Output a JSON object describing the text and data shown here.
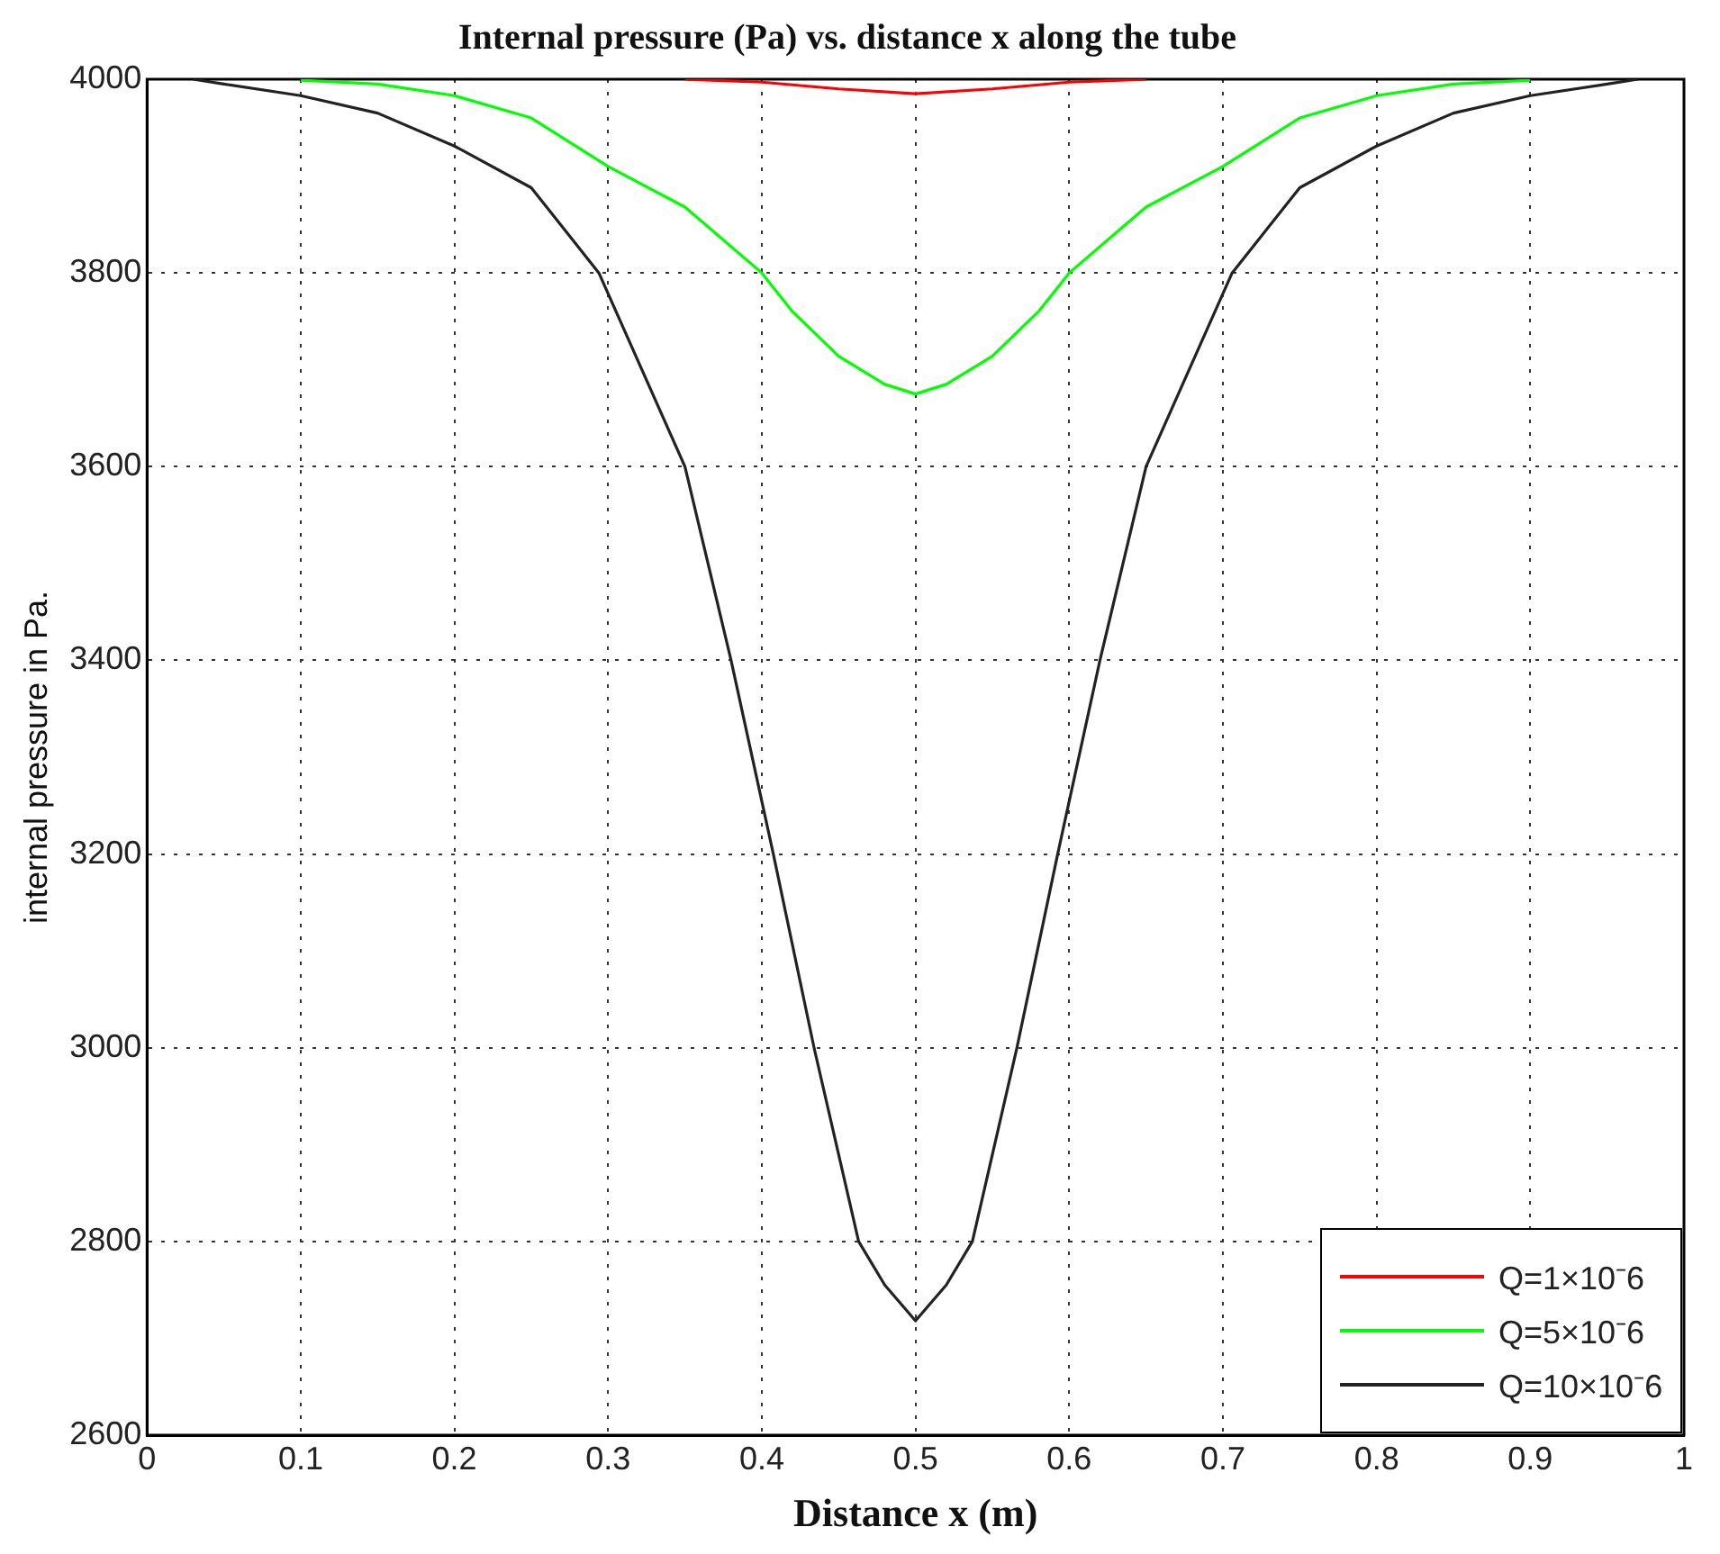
{
  "chart_data": {
    "type": "line",
    "title": "Internal pressure (Pa) vs. distance x along the tube",
    "xlabel": "Distance x (m)",
    "ylabel": "internal pressure in Pa.",
    "xlim": [
      0,
      1
    ],
    "xticks": [
      0,
      0.1,
      0.2,
      0.3,
      0.4,
      0.5,
      0.6,
      0.7,
      0.8,
      0.9,
      1
    ],
    "ylim": [
      2600,
      4000
    ],
    "yticks": [
      2600,
      2800,
      3000,
      3200,
      3400,
      3600,
      3800,
      4000
    ],
    "grid": true,
    "legend": "bottom right",
    "line_style": "solid",
    "marker": "none",
    "series": [
      {
        "name": "Q=1×10⁻6",
        "color": "#ff0000",
        "x": [
          0.35,
          0.4,
          0.45,
          0.5,
          0.55,
          0.6,
          0.65
        ],
        "values": [
          4000,
          3997,
          3990,
          3985,
          3990,
          3997,
          4000
        ]
      },
      {
        "name": "Q=5×10⁻6",
        "color": "#00ff00",
        "x": [
          0.1,
          0.15,
          0.2,
          0.25,
          0.3,
          0.35,
          0.4,
          0.42,
          0.45,
          0.48,
          0.5,
          0.52,
          0.55,
          0.58,
          0.6,
          0.65,
          0.7,
          0.75,
          0.8,
          0.85,
          0.9
        ],
        "values": [
          3999,
          3995,
          3983,
          3960,
          3910,
          3868,
          3800,
          3760,
          3714,
          3685,
          3675,
          3685,
          3714,
          3760,
          3800,
          3868,
          3910,
          3960,
          3983,
          3995,
          3999
        ]
      },
      {
        "name": "Q=10×10⁻6",
        "color": "#222222",
        "x": [
          0.03,
          0.05,
          0.1,
          0.15,
          0.2,
          0.25,
          0.294,
          0.35,
          0.38,
          0.4075,
          0.434,
          0.463,
          0.48,
          0.5,
          0.52,
          0.537,
          0.566,
          0.5925,
          0.62,
          0.65,
          0.706,
          0.75,
          0.8,
          0.85,
          0.9,
          0.95,
          0.97
        ],
        "values": [
          4000,
          3995,
          3983,
          3965,
          3931,
          3888,
          3800,
          3600,
          3400,
          3200,
          3000,
          2800,
          2755,
          2718,
          2755,
          2800,
          3000,
          3200,
          3400,
          3600,
          3800,
          3888,
          3931,
          3965,
          3983,
          3995,
          4000
        ]
      }
    ]
  }
}
